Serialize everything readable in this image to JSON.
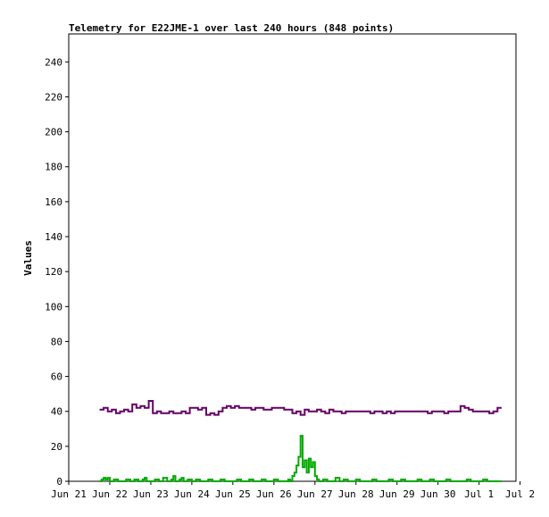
{
  "chart_data": {
    "type": "line",
    "title": "Telemetry for E22JME-1 over last 240 hours (848 points)",
    "ylabel": "Values",
    "xlabel": "",
    "ylim": [
      0,
      256
    ],
    "y_ticks": [
      0,
      20,
      40,
      60,
      80,
      100,
      120,
      140,
      160,
      180,
      200,
      220,
      240
    ],
    "x_ticks": [
      "Jun 21",
      "Jun 22",
      "Jun 23",
      "Jun 24",
      "Jun 25",
      "Jun 26",
      "Jun 27",
      "Jun 28",
      "Jun 29",
      "Jun 30",
      "Jul 1",
      "Jul 2"
    ],
    "x_range_days": [
      0,
      10.9
    ],
    "grid": false,
    "legend": "none",
    "colors": {
      "series_1": "#660066",
      "series_2": "#00aa00",
      "frame": "#000000"
    },
    "series": [
      {
        "color": "#660066",
        "x": [
          0.75,
          0.85,
          0.95,
          1.05,
          1.15,
          1.25,
          1.35,
          1.45,
          1.55,
          1.65,
          1.75,
          1.85,
          1.95,
          2.05,
          2.15,
          2.25,
          2.35,
          2.45,
          2.55,
          2.65,
          2.75,
          2.85,
          2.95,
          3.05,
          3.15,
          3.25,
          3.35,
          3.45,
          3.55,
          3.65,
          3.75,
          3.85,
          3.95,
          4.05,
          4.15,
          4.25,
          4.35,
          4.45,
          4.55,
          4.65,
          4.75,
          4.85,
          4.95,
          5.05,
          5.15,
          5.25,
          5.35,
          5.45,
          5.55,
          5.65,
          5.75,
          5.85,
          5.95,
          6.05,
          6.15,
          6.25,
          6.35,
          6.45,
          6.55,
          6.65,
          6.75,
          6.85,
          6.95,
          7.05,
          7.15,
          7.25,
          7.35,
          7.45,
          7.55,
          7.65,
          7.75,
          7.85,
          7.95,
          8.05,
          8.15,
          8.25,
          8.35,
          8.45,
          8.55,
          8.65,
          8.75,
          8.85,
          8.95,
          9.05,
          9.15,
          9.25,
          9.35,
          9.45,
          9.55,
          9.65,
          9.75,
          9.85,
          9.95,
          10.05,
          10.15,
          10.25,
          10.35,
          10.45,
          10.55
        ],
        "values": [
          41,
          42,
          40,
          41,
          39,
          40,
          41,
          40,
          44,
          42,
          43,
          42,
          46,
          39,
          40,
          39,
          39,
          40,
          39,
          39,
          40,
          39,
          42,
          42,
          41,
          42,
          38,
          39,
          38,
          40,
          42,
          43,
          42,
          43,
          42,
          42,
          42,
          41,
          42,
          42,
          41,
          41,
          42,
          42,
          42,
          41,
          41,
          39,
          40,
          38,
          41,
          40,
          40,
          41,
          40,
          39,
          41,
          40,
          40,
          39,
          40,
          40,
          40,
          40,
          40,
          40,
          39,
          40,
          40,
          39,
          40,
          39,
          40,
          40,
          40,
          40,
          40,
          40,
          40,
          40,
          39,
          40,
          40,
          40,
          39,
          40,
          40,
          40,
          43,
          42,
          41,
          40,
          40,
          40,
          40,
          39,
          40,
          42,
          42
        ]
      },
      {
        "color": "#00aa00",
        "x": [
          0.75,
          0.8,
          0.85,
          0.9,
          0.95,
          1.0,
          1.1,
          1.2,
          1.3,
          1.4,
          1.5,
          1.6,
          1.7,
          1.8,
          1.85,
          1.9,
          2.0,
          2.1,
          2.2,
          2.3,
          2.4,
          2.5,
          2.55,
          2.6,
          2.7,
          2.75,
          2.8,
          2.9,
          3.0,
          3.1,
          3.2,
          3.3,
          3.4,
          3.5,
          3.6,
          3.7,
          3.8,
          3.9,
          4.0,
          4.1,
          4.2,
          4.3,
          4.4,
          4.5,
          4.6,
          4.7,
          4.8,
          4.9,
          5.0,
          5.1,
          5.2,
          5.3,
          5.35,
          5.4,
          5.45,
          5.5,
          5.55,
          5.6,
          5.65,
          5.7,
          5.75,
          5.8,
          5.85,
          5.9,
          5.95,
          6.0,
          6.05,
          6.1,
          6.15,
          6.2,
          6.3,
          6.4,
          6.5,
          6.6,
          6.7,
          6.8,
          6.9,
          7.0,
          7.1,
          7.2,
          7.3,
          7.4,
          7.5,
          7.6,
          7.7,
          7.8,
          7.9,
          8.0,
          8.1,
          8.2,
          8.3,
          8.4,
          8.5,
          8.6,
          8.7,
          8.8,
          8.9,
          9.0,
          9.1,
          9.2,
          9.3,
          9.4,
          9.5,
          9.6,
          9.7,
          9.8,
          9.9,
          10.0,
          10.1,
          10.2,
          10.3,
          10.4,
          10.5,
          10.55
        ],
        "values": [
          0,
          1,
          2,
          1,
          2,
          0,
          1,
          0,
          0,
          1,
          0,
          1,
          0,
          1,
          2,
          0,
          0,
          1,
          0,
          2,
          0,
          1,
          3,
          0,
          1,
          2,
          0,
          1,
          0,
          1,
          0,
          0,
          1,
          0,
          0,
          1,
          0,
          0,
          0,
          1,
          0,
          0,
          1,
          0,
          0,
          1,
          0,
          0,
          1,
          0,
          0,
          0,
          1,
          0,
          3,
          5,
          9,
          14,
          26,
          8,
          12,
          5,
          13,
          8,
          11,
          3,
          1,
          0,
          0,
          1,
          0,
          0,
          2,
          0,
          1,
          0,
          0,
          1,
          0,
          0,
          0,
          1,
          0,
          0,
          0,
          1,
          0,
          0,
          1,
          0,
          0,
          0,
          1,
          0,
          0,
          1,
          0,
          0,
          0,
          1,
          0,
          0,
          0,
          0,
          1,
          0,
          0,
          0,
          1,
          0,
          0,
          0,
          0,
          0
        ]
      }
    ]
  }
}
